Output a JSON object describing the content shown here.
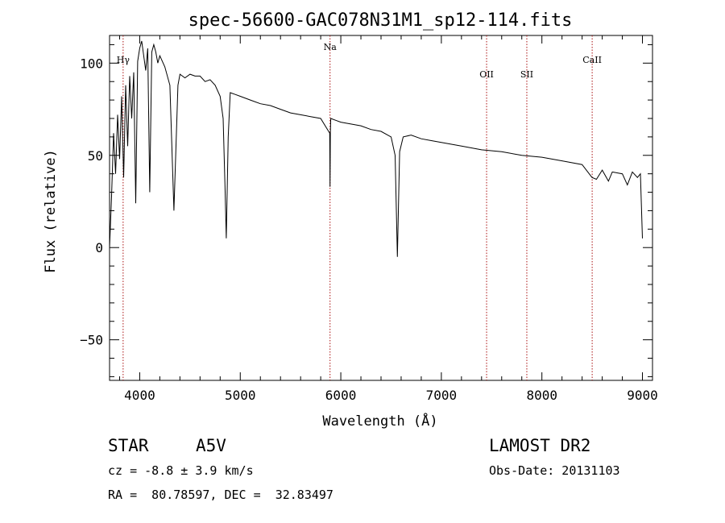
{
  "chart_data": {
    "type": "line",
    "title": "spec-56600-GAC078N31M1_sp12-114.fits",
    "xlabel": "Wavelength (Å)",
    "ylabel": "Flux (relative)",
    "xlim": [
      3700,
      9100
    ],
    "ylim": [
      -72,
      115
    ],
    "xticks": [
      4000,
      5000,
      6000,
      7000,
      8000,
      9000
    ],
    "yticks": [
      -50,
      0,
      50,
      100
    ],
    "grid": false,
    "series": [
      {
        "values_description": "continuum",
        "x": [
          3700,
          3720,
          3740,
          3760,
          3780,
          3800,
          3820,
          3840,
          3860,
          3880,
          3900,
          3920,
          3940,
          3960,
          3980,
          4000,
          4020,
          4040,
          4060,
          4080,
          4100,
          4120,
          4140,
          4160,
          4180,
          4200,
          4250,
          4300,
          4340,
          4380,
          4400,
          4450,
          4500,
          4550,
          4600,
          4650,
          4700,
          4750,
          4800,
          4830,
          4850,
          4861,
          4880,
          4900,
          4950,
          5000,
          5100,
          5200,
          5300,
          5400,
          5500,
          5600,
          5700,
          5800,
          5890,
          5893,
          5896,
          5900,
          5950,
          6000,
          6100,
          6200,
          6300,
          6400,
          6500,
          6540,
          6563,
          6585,
          6620,
          6700,
          6800,
          6900,
          7000,
          7200,
          7400,
          7600,
          7800,
          8000,
          8200,
          8400,
          8498,
          8542,
          8600,
          8662,
          8700,
          8800,
          8850,
          8900,
          8950,
          8980,
          9000
        ],
        "y": [
          0,
          28,
          62,
          40,
          72,
          48,
          82,
          38,
          88,
          55,
          93,
          70,
          95,
          24,
          101,
          108,
          112,
          104,
          96,
          108,
          30,
          106,
          110,
          106,
          100,
          104,
          98,
          88,
          20,
          88,
          94,
          92,
          94,
          93,
          93,
          90,
          91,
          88,
          82,
          70,
          30,
          5,
          60,
          84,
          83,
          82,
          80,
          78,
          77,
          75,
          73,
          72,
          71,
          70,
          62,
          33,
          62,
          70,
          69,
          68,
          67,
          66,
          64,
          63,
          60,
          50,
          -5,
          52,
          60,
          61,
          59,
          58,
          57,
          55,
          53,
          52,
          50,
          49,
          47,
          45,
          38,
          37,
          42,
          36,
          41,
          40,
          34,
          41,
          38,
          40,
          5
        ]
      }
    ],
    "line_markers": [
      {
        "label": "Hγ",
        "x": 3835
      },
      {
        "label": "Na",
        "x": 5893
      },
      {
        "label": "OII",
        "x": 7450
      },
      {
        "label": "SII",
        "x": 7850
      },
      {
        "label": "CaII",
        "x": 8500
      }
    ]
  },
  "info": {
    "object_type": "STAR",
    "subclass": "A5V",
    "survey": "LAMOST DR2",
    "cz": "cz = -8.8 ± 3.9 km/s",
    "obs_date": "Obs-Date: 20131103",
    "coords": "RA =  80.78597, DEC =  32.83497"
  }
}
